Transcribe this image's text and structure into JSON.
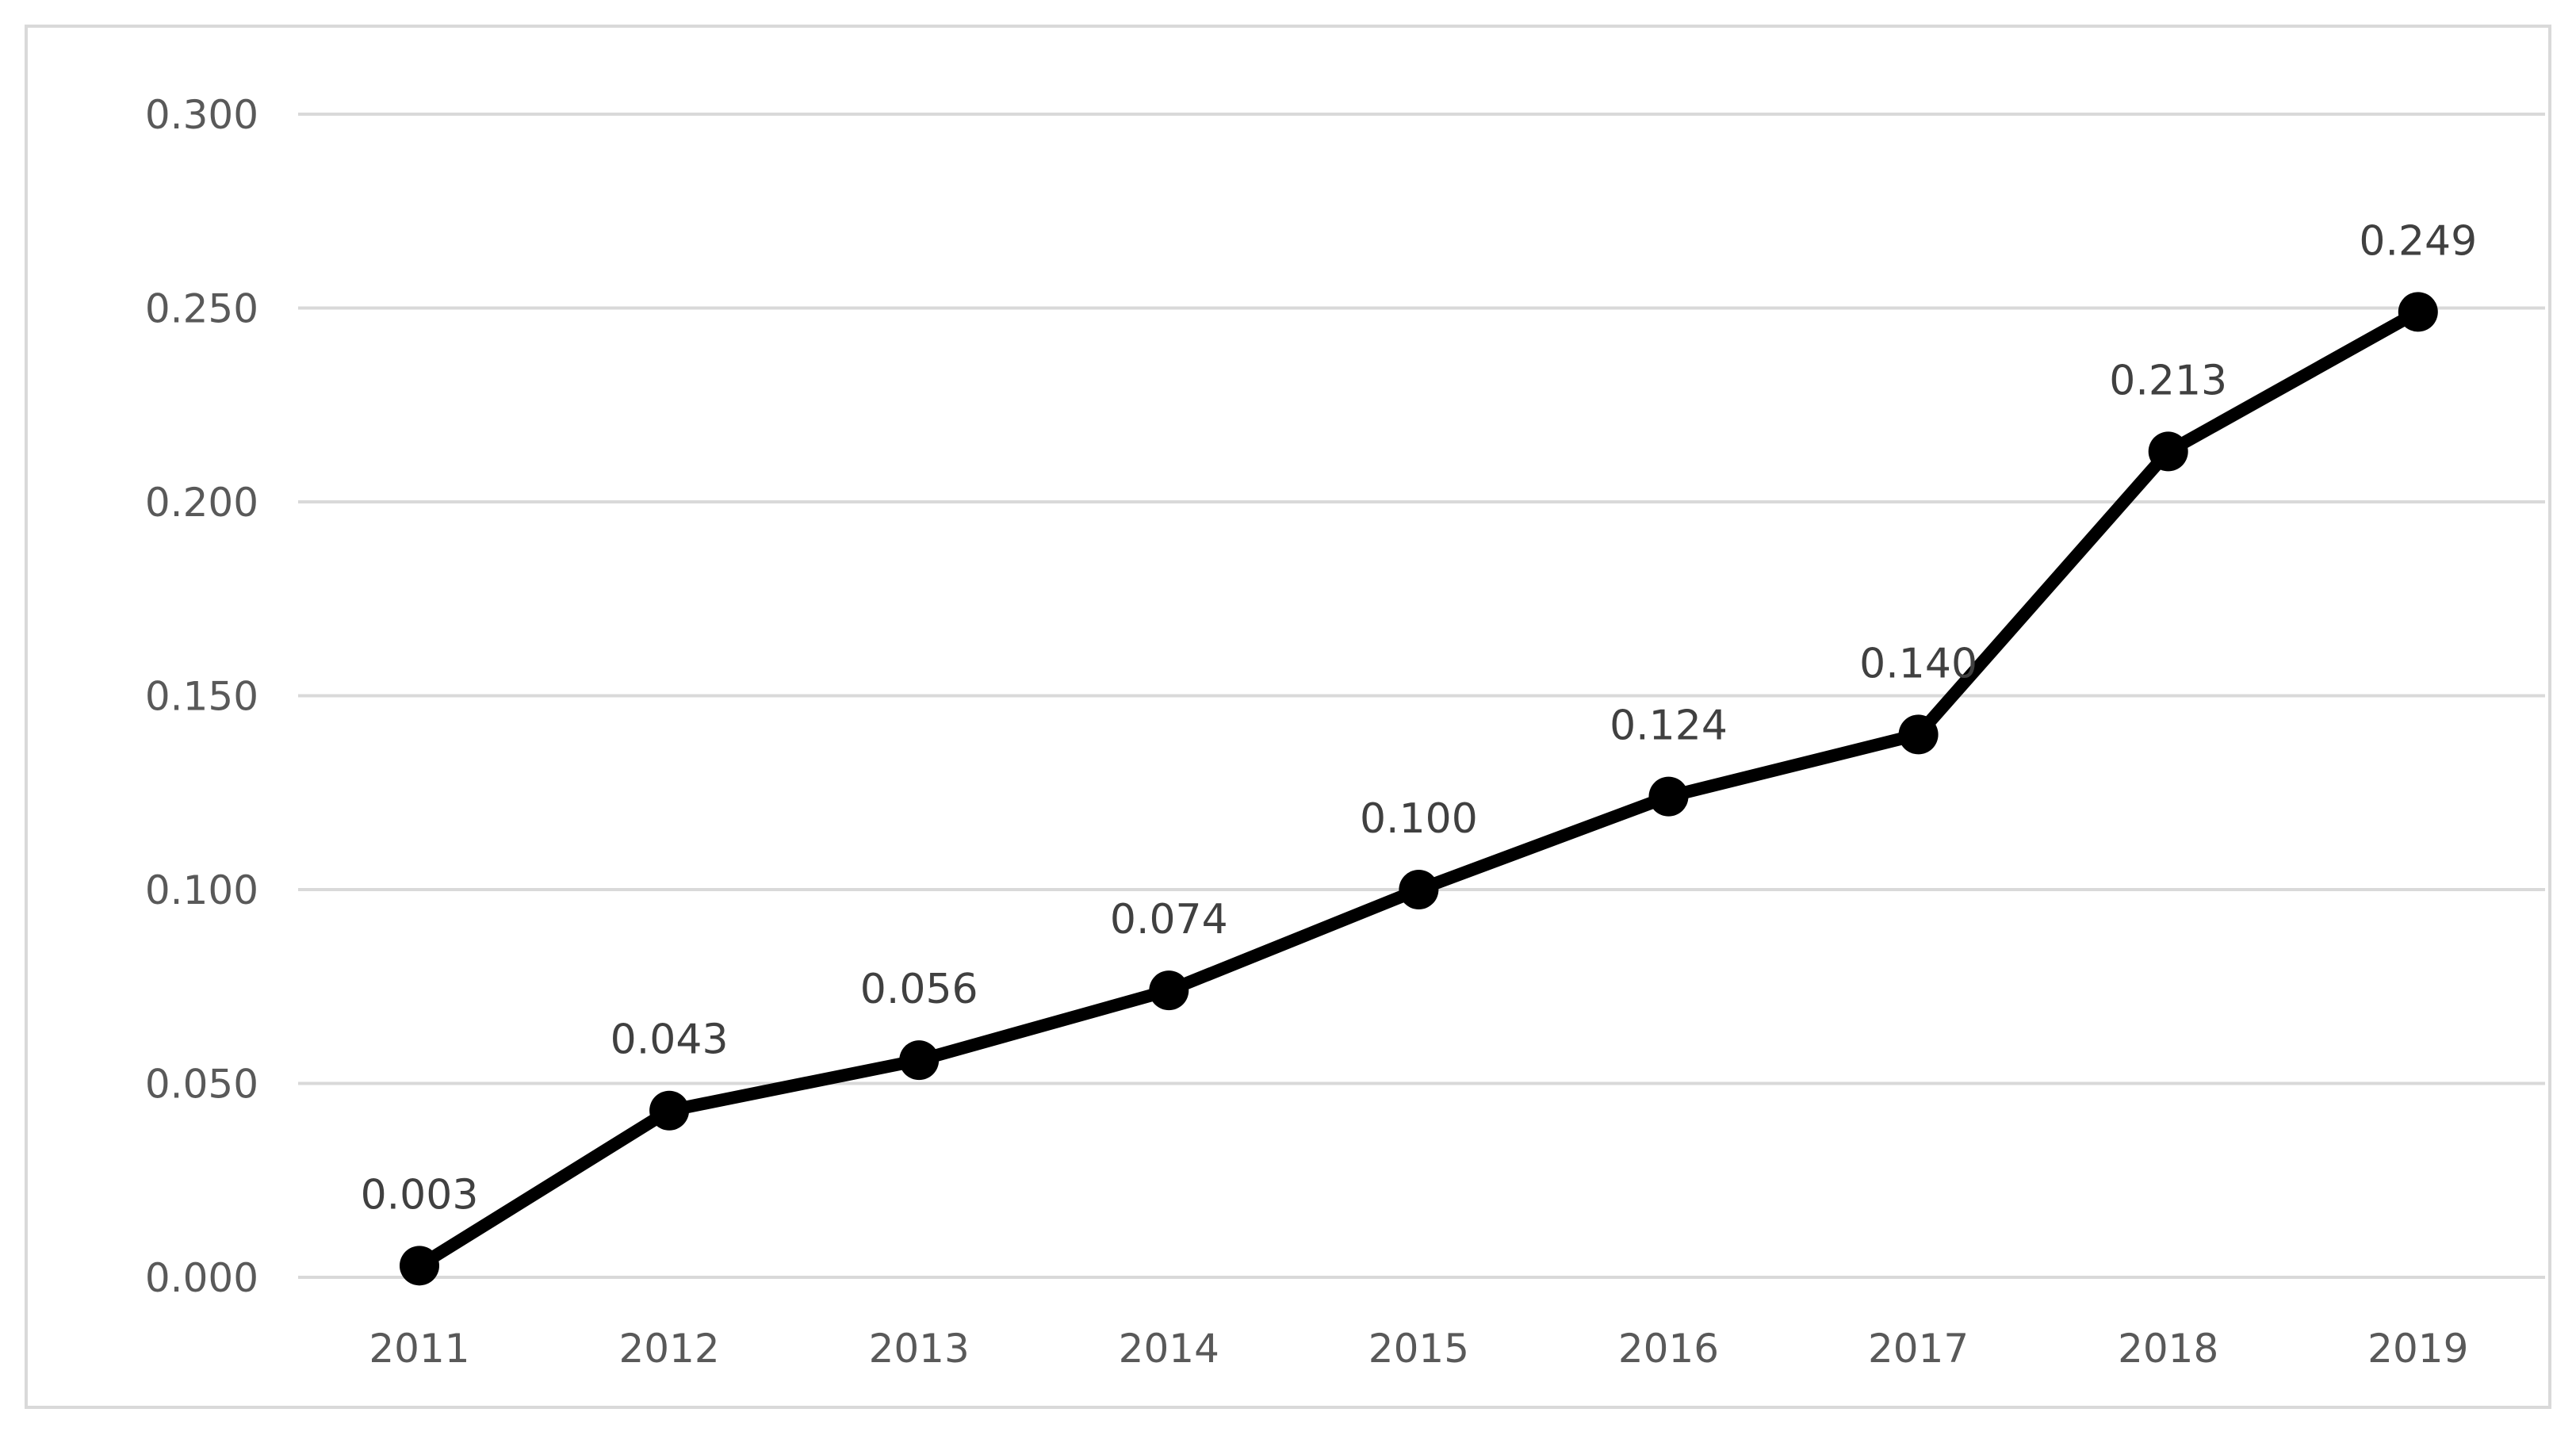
{
  "chart_data": {
    "type": "line",
    "title": "",
    "xlabel": "",
    "ylabel": "",
    "categories": [
      "2011",
      "2012",
      "2013",
      "2014",
      "2015",
      "2016",
      "2017",
      "2018",
      "2019"
    ],
    "series": [
      {
        "values": [
          0.003,
          0.043,
          0.056,
          0.074,
          0.1,
          0.124,
          0.14,
          0.213,
          0.249
        ],
        "data_labels": [
          "0.003",
          "0.043",
          "0.056",
          "0.074",
          "0.100",
          "0.124",
          "0.140",
          "0.213",
          "0.249"
        ],
        "color": "#000000",
        "marker": "circle"
      }
    ],
    "ylim": [
      0,
      0.3
    ],
    "y_ticks": [
      0,
      0.05,
      0.1,
      0.15,
      0.2,
      0.25,
      0.3
    ],
    "y_tick_labels": [
      "0.000",
      "0.050",
      "0.100",
      "0.150",
      "0.200",
      "0.250",
      "0.300"
    ],
    "grid": true,
    "legend": "none",
    "colors": {
      "line": "#000000",
      "gridline": "#d9d9d9",
      "tick_text": "#595959",
      "label_text": "#404040",
      "frame": "#d9d9d9"
    }
  }
}
